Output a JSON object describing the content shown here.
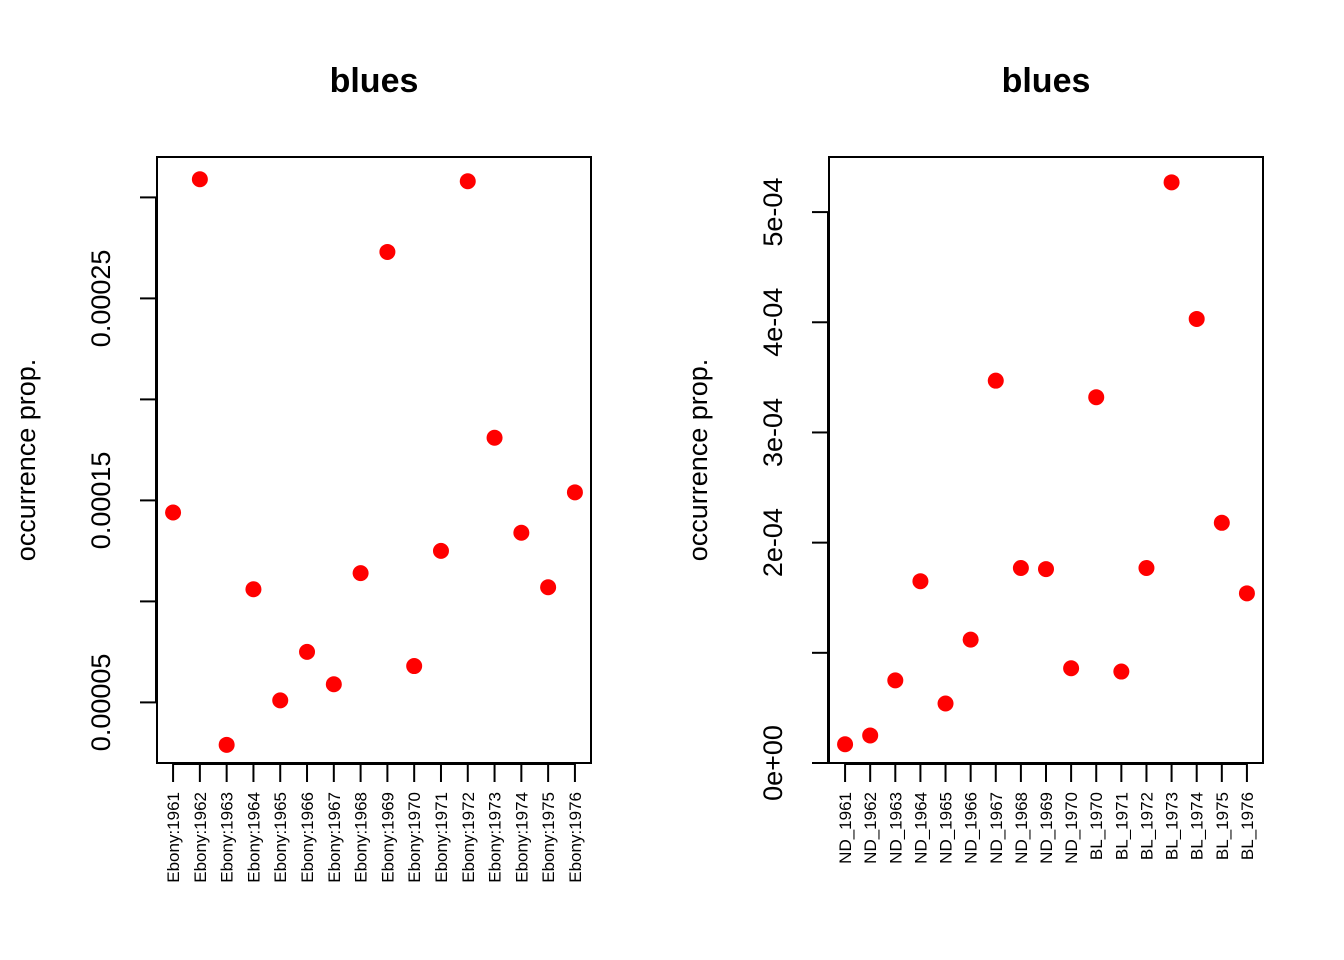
{
  "chart_data": [
    {
      "type": "scatter",
      "title": "blues",
      "ylabel": "occurrence prop.",
      "xlabel": "",
      "categories": [
        "Ebony:1961",
        "Ebony:1962",
        "Ebony:1963",
        "Ebony:1964",
        "Ebony:1965",
        "Ebony:1966",
        "Ebony:1967",
        "Ebony:1968",
        "Ebony:1969",
        "Ebony:1970",
        "Ebony:1971",
        "Ebony:1972",
        "Ebony:1973",
        "Ebony:1974",
        "Ebony:1975",
        "Ebony:1976"
      ],
      "values": [
        0.000144,
        0.000309,
        2.9e-05,
        0.000106,
        5.1e-05,
        7.5e-05,
        5.9e-05,
        0.000114,
        0.000273,
        6.8e-05,
        0.000125,
        0.000308,
        0.000181,
        0.000134,
        0.000107,
        0.000154
      ],
      "ylim": [
        2e-05,
        0.00032
      ],
      "yticks": [
        5e-05,
        0.0001,
        0.00015,
        0.0002,
        0.00025,
        0.0003
      ],
      "ytick_labels": [
        "0.00005",
        "",
        "0.00015",
        "",
        "0.00025",
        ""
      ],
      "point_color": "#ff0000"
    },
    {
      "type": "scatter",
      "title": "blues",
      "ylabel": "occurrence prop.",
      "xlabel": "",
      "categories": [
        "ND_1961",
        "ND_1962",
        "ND_1963",
        "ND_1964",
        "ND_1965",
        "ND_1966",
        "ND_1967",
        "ND_1968",
        "ND_1969",
        "ND_1970",
        "BL_1970",
        "BL_1971",
        "BL_1972",
        "BL_1973",
        "BL_1974",
        "BL_1975",
        "BL_1976"
      ],
      "values": [
        1.7e-05,
        2.5e-05,
        7.5e-05,
        0.000165,
        5.4e-05,
        0.000112,
        0.000347,
        0.000177,
        0.000176,
        8.6e-05,
        0.000332,
        8.3e-05,
        0.000177,
        0.000527,
        0.000403,
        0.000218,
        0.000154
      ],
      "ylim": [
        0,
        0.00055
      ],
      "yticks": [
        0,
        0.0001,
        0.0002,
        0.0003,
        0.0004,
        0.0005
      ],
      "ytick_labels": [
        "0e+00",
        "",
        "2e-04",
        "3e-04",
        "4e-04",
        "5e-04"
      ],
      "point_color": "#ff0000"
    }
  ]
}
